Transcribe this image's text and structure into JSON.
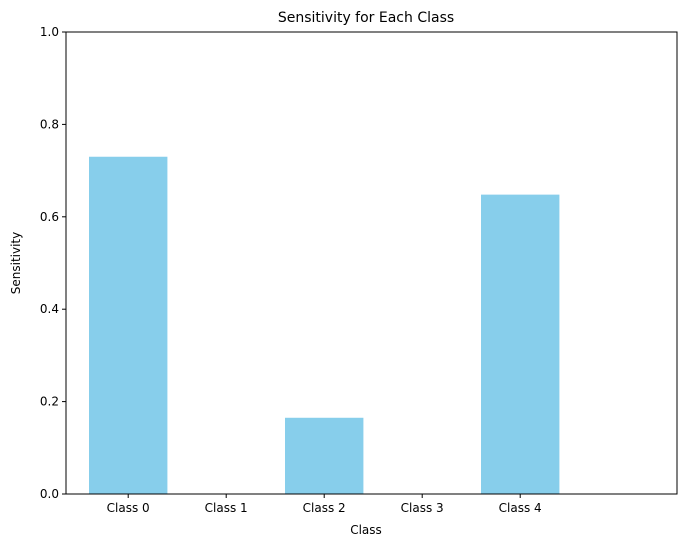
{
  "chart_data": {
    "type": "bar",
    "title": "Sensitivity for Each Class",
    "xlabel": "Class",
    "ylabel": "Sensitivity",
    "categories": [
      "Class 0",
      "Class 1",
      "Class 2",
      "Class 3",
      "Class 4"
    ],
    "values": [
      0.73,
      0.0,
      0.165,
      0.0,
      0.648
    ],
    "ylim": [
      0,
      1
    ],
    "yticks": [
      "0.0",
      "0.2",
      "0.4",
      "0.6",
      "0.8",
      "1.0"
    ],
    "ytick_values": [
      0,
      0.2,
      0.4,
      0.6,
      0.8,
      1.0
    ],
    "grid": false,
    "legend": "none",
    "colors": {
      "bar": "#87ceeb",
      "axis": "#000000",
      "background": "#ffffff"
    }
  }
}
